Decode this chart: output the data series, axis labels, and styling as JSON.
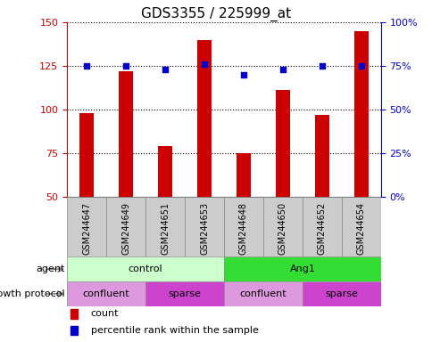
{
  "title": "GDS3355 / 225999_at",
  "samples": [
    "GSM244647",
    "GSM244649",
    "GSM244651",
    "GSM244653",
    "GSM244648",
    "GSM244650",
    "GSM244652",
    "GSM244654"
  ],
  "counts": [
    98,
    122,
    79,
    140,
    75,
    111,
    97,
    145
  ],
  "percentile_ranks": [
    75,
    75,
    73,
    76,
    70,
    73,
    75,
    75
  ],
  "ylim_left": [
    50,
    150
  ],
  "ylim_right": [
    0,
    100
  ],
  "yticks_left": [
    50,
    75,
    100,
    125,
    150
  ],
  "yticks_right": [
    0,
    25,
    50,
    75,
    100
  ],
  "bar_color": "#cc0000",
  "dot_color": "#0000cc",
  "agent_labels": [
    {
      "label": "control",
      "start": 0,
      "end": 4,
      "color": "#ccffcc"
    },
    {
      "label": "Ang1",
      "start": 4,
      "end": 8,
      "color": "#33dd33"
    }
  ],
  "growth_labels": [
    {
      "label": "confluent",
      "start": 0,
      "end": 2,
      "color": "#dd99dd"
    },
    {
      "label": "sparse",
      "start": 2,
      "end": 4,
      "color": "#cc44cc"
    },
    {
      "label": "confluent",
      "start": 4,
      "end": 6,
      "color": "#dd99dd"
    },
    {
      "label": "sparse",
      "start": 6,
      "end": 8,
      "color": "#cc44cc"
    }
  ],
  "sample_bg": "#cccccc",
  "bar_width": 0.35,
  "title_fontsize": 11,
  "tick_fontsize": 8,
  "label_fontsize": 8,
  "sample_fontsize": 7
}
